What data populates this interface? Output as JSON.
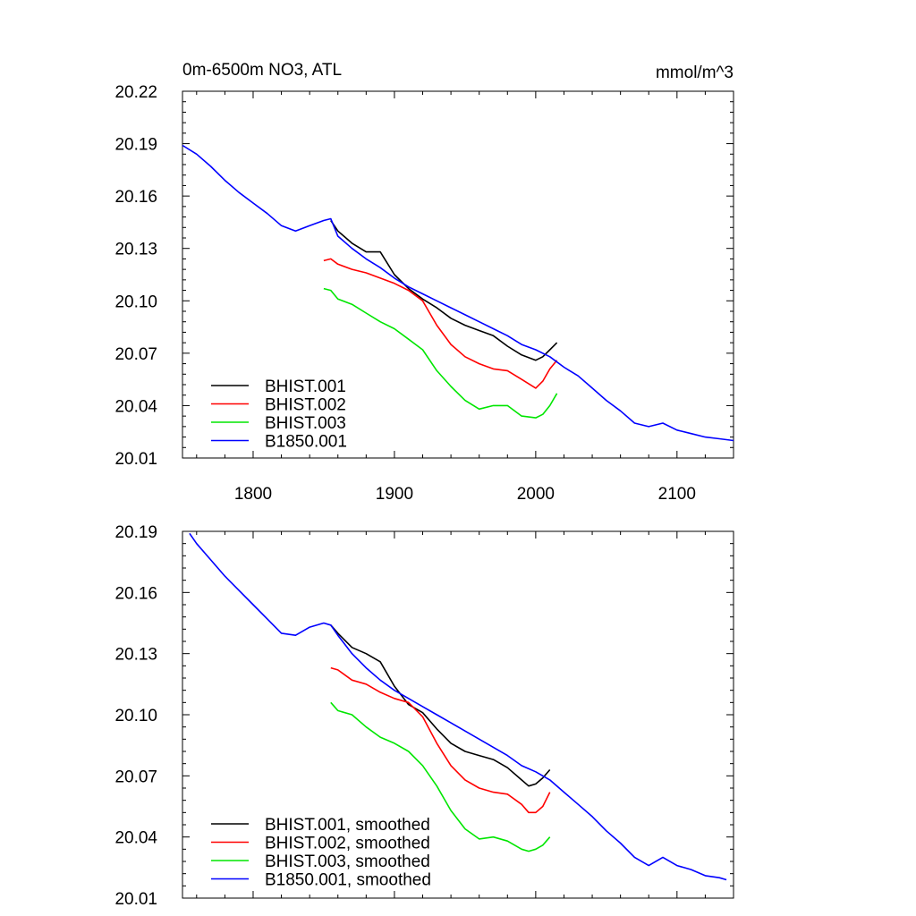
{
  "chart_data": [
    {
      "type": "line",
      "title": "0m-6500m NO3, ATL",
      "units_label": "mmol/m^3",
      "xlim": [
        1750,
        2140
      ],
      "ylim": [
        20.01,
        20.22
      ],
      "x_ticks": [
        1800,
        1900,
        2000,
        2100
      ],
      "x_tick_labels": [
        "1800",
        "1900",
        "2000",
        "2100"
      ],
      "y_ticks": [
        20.01,
        20.04,
        20.07,
        20.1,
        20.13,
        20.16,
        20.19,
        20.22
      ],
      "y_tick_labels": [
        "20.01",
        "20.04",
        "20.07",
        "20.10",
        "20.13",
        "20.16",
        "20.19",
        "20.22"
      ],
      "grid": false,
      "legend_position": "bottom-left",
      "series": [
        {
          "name": "BHIST.001",
          "color": "#000000",
          "x": [
            1855,
            1860,
            1870,
            1880,
            1890,
            1900,
            1910,
            1920,
            1930,
            1940,
            1950,
            1960,
            1970,
            1980,
            1990,
            2000,
            2005,
            2010,
            2015
          ],
          "y": [
            20.146,
            20.14,
            20.133,
            20.128,
            20.128,
            20.115,
            20.107,
            20.101,
            20.096,
            20.09,
            20.086,
            20.083,
            20.08,
            20.074,
            20.069,
            20.066,
            20.068,
            20.072,
            20.076
          ]
        },
        {
          "name": "BHIST.002",
          "color": "#ff0000",
          "x": [
            1850,
            1855,
            1860,
            1870,
            1880,
            1890,
            1900,
            1910,
            1920,
            1925,
            1930,
            1940,
            1950,
            1960,
            1970,
            1980,
            1990,
            2000,
            2005,
            2010,
            2015
          ],
          "y": [
            20.123,
            20.124,
            20.121,
            20.118,
            20.116,
            20.113,
            20.11,
            20.106,
            20.1,
            20.093,
            20.086,
            20.075,
            20.068,
            20.064,
            20.061,
            20.06,
            20.055,
            20.05,
            20.054,
            20.061,
            20.066
          ]
        },
        {
          "name": "BHIST.003",
          "color": "#00e600",
          "x": [
            1850,
            1855,
            1860,
            1870,
            1880,
            1890,
            1900,
            1910,
            1920,
            1930,
            1940,
            1950,
            1960,
            1970,
            1980,
            1990,
            2000,
            2005,
            2010,
            2015
          ],
          "y": [
            20.107,
            20.106,
            20.101,
            20.098,
            20.093,
            20.088,
            20.084,
            20.078,
            20.072,
            20.06,
            20.051,
            20.043,
            20.038,
            20.04,
            20.04,
            20.034,
            20.033,
            20.035,
            20.04,
            20.047
          ]
        },
        {
          "name": "B1850.001",
          "color": "#0000ff",
          "x": [
            1750,
            1760,
            1770,
            1780,
            1790,
            1800,
            1810,
            1820,
            1830,
            1840,
            1850,
            1855,
            1860,
            1870,
            1880,
            1890,
            1900,
            1910,
            1920,
            1930,
            1940,
            1950,
            1960,
            1970,
            1980,
            1990,
            2000,
            2010,
            2020,
            2030,
            2040,
            2050,
            2060,
            2070,
            2080,
            2090,
            2100,
            2110,
            2120,
            2130,
            2140
          ],
          "y": [
            20.189,
            20.184,
            20.177,
            20.169,
            20.162,
            20.156,
            20.15,
            20.143,
            20.14,
            20.143,
            20.146,
            20.147,
            20.137,
            20.13,
            20.124,
            20.119,
            20.113,
            20.108,
            20.104,
            20.1,
            20.096,
            20.092,
            20.088,
            20.084,
            20.08,
            20.075,
            20.072,
            20.068,
            20.062,
            20.057,
            20.05,
            20.043,
            20.037,
            20.03,
            20.028,
            20.03,
            20.026,
            20.024,
            20.022,
            20.021,
            20.02
          ]
        }
      ]
    },
    {
      "type": "line",
      "xlim": [
        1750,
        2140
      ],
      "ylim": [
        20.01,
        20.19
      ],
      "x_ticks": [
        1800,
        1900,
        2000,
        2100
      ],
      "y_ticks": [
        20.01,
        20.04,
        20.07,
        20.1,
        20.13,
        20.16,
        20.19
      ],
      "y_tick_labels": [
        "20.01",
        "20.04",
        "20.07",
        "20.10",
        "20.13",
        "20.16",
        "20.19"
      ],
      "grid": false,
      "legend_position": "bottom-left",
      "series": [
        {
          "name": "BHIST.001, smoothed",
          "color": "#000000",
          "x": [
            1855,
            1860,
            1870,
            1880,
            1890,
            1900,
            1910,
            1920,
            1930,
            1940,
            1950,
            1960,
            1970,
            1980,
            1990,
            1995,
            2000,
            2005,
            2010
          ],
          "y": [
            20.144,
            20.14,
            20.133,
            20.13,
            20.126,
            20.114,
            20.105,
            20.101,
            20.093,
            20.086,
            20.082,
            20.08,
            20.078,
            20.074,
            20.068,
            20.065,
            20.066,
            20.069,
            20.073
          ]
        },
        {
          "name": "BHIST.002, smoothed",
          "color": "#ff0000",
          "x": [
            1855,
            1860,
            1870,
            1880,
            1890,
            1900,
            1910,
            1920,
            1930,
            1940,
            1950,
            1960,
            1970,
            1980,
            1990,
            1995,
            2000,
            2005,
            2010
          ],
          "y": [
            20.123,
            20.122,
            20.117,
            20.115,
            20.111,
            20.108,
            20.106,
            20.099,
            20.086,
            20.075,
            20.068,
            20.064,
            20.062,
            20.061,
            20.056,
            20.052,
            20.052,
            20.055,
            20.062
          ]
        },
        {
          "name": "BHIST.003, smoothed",
          "color": "#00e600",
          "x": [
            1855,
            1860,
            1870,
            1880,
            1890,
            1900,
            1910,
            1920,
            1930,
            1940,
            1950,
            1960,
            1970,
            1980,
            1990,
            1995,
            2000,
            2005,
            2010
          ],
          "y": [
            20.106,
            20.102,
            20.1,
            20.094,
            20.089,
            20.086,
            20.082,
            20.075,
            20.065,
            20.053,
            20.044,
            20.039,
            20.04,
            20.038,
            20.034,
            20.033,
            20.034,
            20.036,
            20.04
          ]
        },
        {
          "name": "B1850.001, smoothed",
          "color": "#0000ff",
          "x": [
            1755,
            1760,
            1770,
            1780,
            1790,
            1800,
            1810,
            1820,
            1830,
            1840,
            1850,
            1855,
            1860,
            1870,
            1880,
            1890,
            1900,
            1910,
            1920,
            1930,
            1940,
            1950,
            1960,
            1970,
            1980,
            1990,
            2000,
            2010,
            2020,
            2030,
            2040,
            2050,
            2060,
            2070,
            2080,
            2090,
            2100,
            2110,
            2120,
            2130,
            2135
          ],
          "y": [
            20.189,
            20.184,
            20.176,
            20.168,
            20.161,
            20.154,
            20.147,
            20.14,
            20.139,
            20.143,
            20.145,
            20.144,
            20.139,
            20.13,
            20.123,
            20.117,
            20.112,
            20.108,
            20.104,
            20.1,
            20.096,
            20.092,
            20.088,
            20.084,
            20.08,
            20.075,
            20.072,
            20.068,
            20.062,
            20.056,
            20.05,
            20.043,
            20.037,
            20.03,
            20.026,
            20.03,
            20.026,
            20.024,
            20.021,
            20.02,
            20.019
          ]
        }
      ]
    }
  ]
}
